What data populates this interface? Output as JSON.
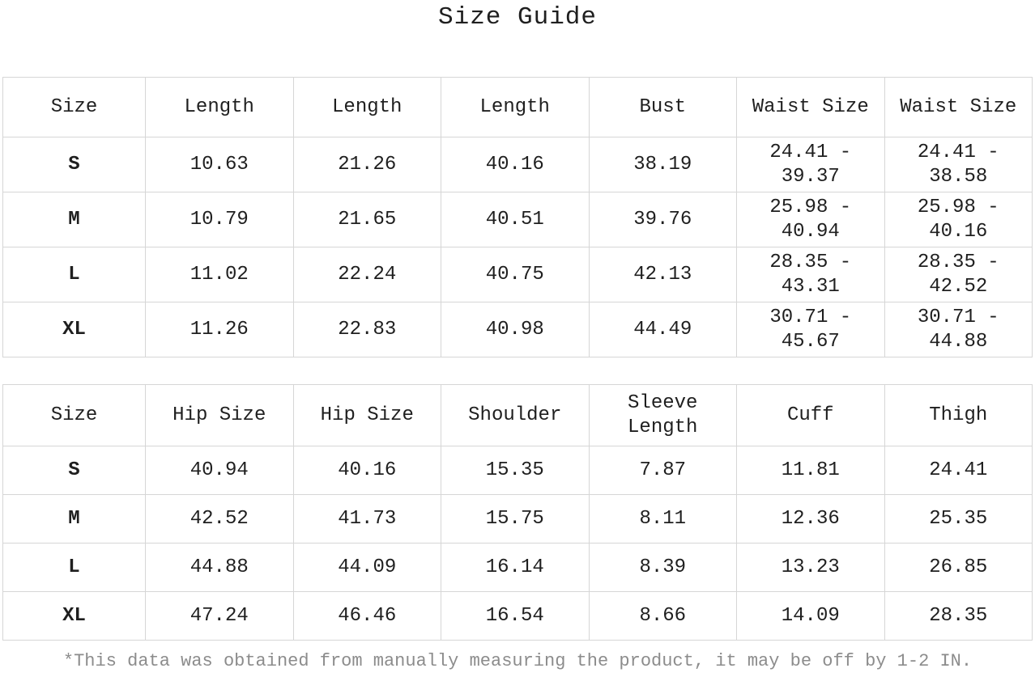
{
  "title": "Size Guide",
  "table1": {
    "headers": [
      "Size",
      "Length",
      "Length",
      "Length",
      "Bust",
      "Waist Size",
      "Waist Size"
    ],
    "rows": [
      [
        "S",
        "10.63",
        "21.26",
        "40.16",
        "38.19",
        "24.41 - 39.37",
        "24.41 - 38.58"
      ],
      [
        "M",
        "10.79",
        "21.65",
        "40.51",
        "39.76",
        "25.98 - 40.94",
        "25.98 - 40.16"
      ],
      [
        "L",
        "11.02",
        "22.24",
        "40.75",
        "42.13",
        "28.35 - 43.31",
        "28.35 - 42.52"
      ],
      [
        "XL",
        "11.26",
        "22.83",
        "40.98",
        "44.49",
        "30.71 - 45.67",
        "30.71 - 44.88"
      ]
    ]
  },
  "table2": {
    "headers": [
      "Size",
      "Hip Size",
      "Hip Size",
      "Shoulder",
      "Sleeve Length",
      "Cuff",
      "Thigh"
    ],
    "rows": [
      [
        "S",
        "40.94",
        "40.16",
        "15.35",
        "7.87",
        "11.81",
        "24.41"
      ],
      [
        "M",
        "42.52",
        "41.73",
        "15.75",
        "8.11",
        "12.36",
        "25.35"
      ],
      [
        "L",
        "44.88",
        "44.09",
        "16.14",
        "8.39",
        "13.23",
        "26.85"
      ],
      [
        "XL",
        "47.24",
        "46.46",
        "16.54",
        "8.66",
        "14.09",
        "28.35"
      ]
    ]
  },
  "footnote": "*This data was obtained from manually measuring the product, it may be off by 1-2 IN.",
  "colors": {
    "text": "#1f1f1f",
    "border": "#d6d6d6",
    "footnote_text": "#8c8c8c",
    "background": "#ffffff"
  },
  "chart_data": [
    {
      "type": "table",
      "title": "Size Guide",
      "columns": [
        "Size",
        "Length",
        "Length",
        "Length",
        "Bust",
        "Waist Size",
        "Waist Size"
      ],
      "rows": [
        [
          "S",
          10.63,
          21.26,
          40.16,
          38.19,
          "24.41 - 39.37",
          "24.41 - 38.58"
        ],
        [
          "M",
          10.79,
          21.65,
          40.51,
          39.76,
          "25.98 - 40.94",
          "25.98 - 40.16"
        ],
        [
          "L",
          11.02,
          22.24,
          40.75,
          42.13,
          "28.35 - 43.31",
          "28.35 - 42.52"
        ],
        [
          "XL",
          11.26,
          22.83,
          40.98,
          44.49,
          "30.71 - 45.67",
          "30.71 - 44.88"
        ]
      ]
    },
    {
      "type": "table",
      "title": "Size Guide (continued)",
      "columns": [
        "Size",
        "Hip Size",
        "Hip Size",
        "Shoulder",
        "Sleeve Length",
        "Cuff",
        "Thigh"
      ],
      "rows": [
        [
          "S",
          40.94,
          40.16,
          15.35,
          7.87,
          11.81,
          24.41
        ],
        [
          "M",
          42.52,
          41.73,
          15.75,
          8.11,
          12.36,
          25.35
        ],
        [
          "L",
          44.88,
          44.09,
          16.14,
          8.39,
          13.23,
          26.85
        ],
        [
          "XL",
          47.24,
          46.46,
          16.54,
          8.66,
          14.09,
          28.35
        ]
      ]
    }
  ]
}
